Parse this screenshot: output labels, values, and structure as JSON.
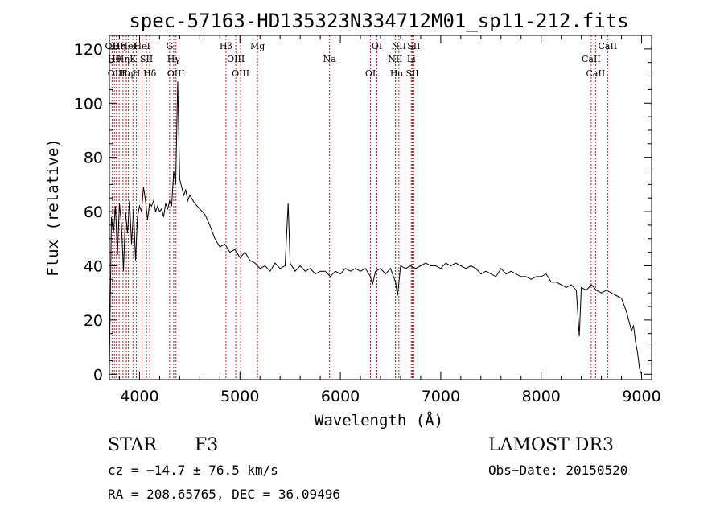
{
  "chart_data": {
    "type": "line",
    "title": "spec-57163-HD135323N334712M01_sp11-212.fits",
    "xlabel": "Wavelength (Å)",
    "ylabel": "Flux (relative)",
    "xlim": [
      3700,
      9100
    ],
    "ylim": [
      -2,
      125
    ],
    "xticks": [
      4000,
      5000,
      6000,
      7000,
      8000,
      9000
    ],
    "yticks": [
      0,
      20,
      40,
      60,
      80,
      100,
      120
    ],
    "grid": false,
    "series": [
      {
        "x": [
          3700,
          3720,
          3740,
          3760,
          3780,
          3800,
          3820,
          3840,
          3860,
          3880,
          3900,
          3920,
          3940,
          3960,
          3980,
          4000,
          4020,
          4040,
          4060,
          4080,
          4100,
          4120,
          4140,
          4160,
          4180,
          4200,
          4220,
          4240,
          4260,
          4280,
          4300,
          4320,
          4340,
          4360,
          4380,
          4400,
          4420,
          4440,
          4460,
          4480,
          4500,
          4550,
          4600,
          4650,
          4700,
          4750,
          4800,
          4850,
          4900,
          4950,
          5000,
          5050,
          5100,
          5150,
          5200,
          5250,
          5300,
          5350,
          5400,
          5450,
          5480,
          5500,
          5550,
          5600,
          5650,
          5700,
          5750,
          5800,
          5850,
          5900,
          5950,
          6000,
          6050,
          6100,
          6150,
          6200,
          6250,
          6300,
          6320,
          6350,
          6400,
          6450,
          6500,
          6550,
          6570,
          6600,
          6650,
          6700,
          6750,
          6800,
          6850,
          6900,
          6950,
          7000,
          7050,
          7100,
          7150,
          7200,
          7250,
          7300,
          7350,
          7400,
          7450,
          7500,
          7550,
          7600,
          7650,
          7700,
          7750,
          7800,
          7850,
          7900,
          7950,
          8000,
          8050,
          8100,
          8150,
          8200,
          8250,
          8300,
          8350,
          8380,
          8400,
          8450,
          8500,
          8550,
          8600,
          8650,
          8700,
          8750,
          8800,
          8850,
          8900,
          8920,
          8940,
          8960,
          8980,
          9000
        ],
        "y": [
          2,
          58,
          52,
          62,
          44,
          63,
          55,
          38,
          60,
          52,
          64,
          48,
          61,
          42,
          58,
          62,
          60,
          69,
          64,
          57,
          63,
          62,
          64,
          60,
          62,
          60,
          61,
          58,
          63,
          61,
          64,
          62,
          75,
          70,
          108,
          72,
          69,
          66,
          68,
          64,
          66,
          63,
          61,
          59,
          55,
          50,
          47,
          48,
          45,
          46,
          43,
          45,
          42,
          41,
          39,
          40,
          38,
          41,
          39,
          40,
          63,
          41,
          38,
          40,
          38,
          39,
          37,
          38,
          38,
          36,
          38,
          37,
          39,
          38,
          39,
          38,
          39,
          36,
          33,
          38,
          39,
          37,
          39,
          34,
          29,
          40,
          39,
          40,
          39,
          40,
          41,
          40,
          40,
          39,
          41,
          40,
          41,
          40,
          39,
          40,
          39,
          37,
          38,
          37,
          36,
          39,
          37,
          38,
          37,
          36,
          36,
          35,
          36,
          36,
          37,
          34,
          34,
          33,
          32,
          33,
          31,
          14,
          32,
          31,
          33,
          31,
          30,
          31,
          30,
          29,
          28,
          23,
          16,
          18,
          12,
          8,
          2,
          0
        ]
      }
    ],
    "line_markers": [
      {
        "x": 3727,
        "label": "OII"
      },
      {
        "x": 3750,
        "label": "Hθ"
      },
      {
        "x": 3770,
        "label": "OIII"
      },
      {
        "x": 3797,
        "label": "Hη"
      },
      {
        "x": 3835,
        "label": "Hη"
      },
      {
        "x": 3869,
        "label": "Hη"
      },
      {
        "x": 3889,
        "label": "HeI"
      },
      {
        "x": 3934,
        "label": "K"
      },
      {
        "x": 3969,
        "label": "H"
      },
      {
        "x": 4026,
        "label": "HeI"
      },
      {
        "x": 4069,
        "label": "SII"
      },
      {
        "x": 4102,
        "label": "Hδ"
      },
      {
        "x": 4300,
        "label": "G"
      },
      {
        "x": 4340,
        "label": "Hγ"
      },
      {
        "x": 4363,
        "label": "OIII"
      },
      {
        "x": 4861,
        "label": "Hβ"
      },
      {
        "x": 4959,
        "label": "OIII"
      },
      {
        "x": 5007,
        "label": "OIII"
      },
      {
        "x": 5175,
        "label": "Mg"
      },
      {
        "x": 5893,
        "label": "Na"
      },
      {
        "x": 6300,
        "label": "OI"
      },
      {
        "x": 6364,
        "label": "OI"
      },
      {
        "x": 6548,
        "label": "NII"
      },
      {
        "x": 6563,
        "label": "Hα"
      },
      {
        "x": 6583,
        "label": "NII"
      },
      {
        "x": 6707,
        "label": "Li"
      },
      {
        "x": 6717,
        "label": "SII"
      },
      {
        "x": 6731,
        "label": "SII"
      },
      {
        "x": 8498,
        "label": "CaII"
      },
      {
        "x": 8542,
        "label": "CaII"
      },
      {
        "x": 8662,
        "label": "CaII"
      }
    ],
    "colors": {
      "spectrum": "#000000",
      "markers": "#b22222",
      "axes": "#000000"
    }
  },
  "info": {
    "object_class": "STAR",
    "subclass": "F3",
    "survey": "LAMOST DR3",
    "cz": "cz = −14.7 ± 76.5 km/s",
    "obs_date": "Obs−Date: 20150520",
    "coords": "RA = 208.65765, DEC =  36.09496"
  }
}
